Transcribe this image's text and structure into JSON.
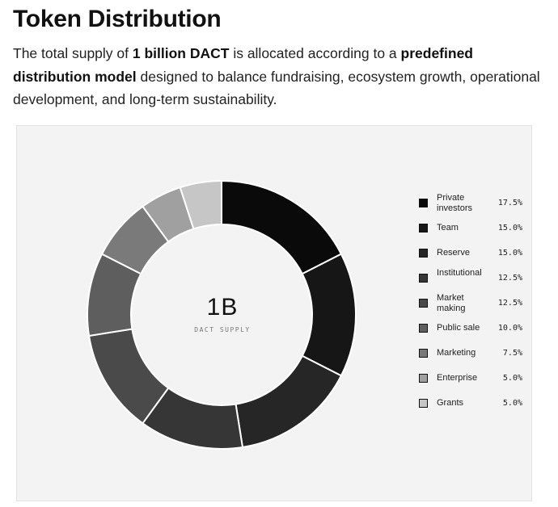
{
  "heading": "Token Distribution",
  "intro": {
    "part1": "The total supply of ",
    "bold1": "1 billion DACT",
    "part2": " is allocated according to a ",
    "bold2": "predefined distribution model",
    "part3": " designed to balance fundraising, ecosystem growth, operational development, and long-term sustainability."
  },
  "chart_data": {
    "type": "pie",
    "donut": true,
    "center_value": "1B",
    "center_label": "DACT SUPPLY",
    "legend_position": "right",
    "categories": [
      "Private investors",
      "Team",
      "Reserve",
      "Institutional",
      "Market making",
      "Public sale",
      "Marketing",
      "Enterprise",
      "Grants"
    ],
    "values": [
      17.5,
      15.0,
      15.0,
      12.5,
      12.5,
      10.0,
      7.5,
      5.0,
      5.0
    ],
    "value_labels": [
      "17.5%",
      "15.0%",
      "15.0%",
      "12.5%",
      "12.5%",
      "10.0%",
      "7.5%",
      "5.0%",
      "5.0%"
    ],
    "colors": [
      "#0a0a0a",
      "#161616",
      "#262626",
      "#363636",
      "#4a4a4a",
      "#5e5e5e",
      "#7a7a7a",
      "#a0a0a0",
      "#c6c6c6"
    ],
    "separator_color": "#ffffff"
  }
}
